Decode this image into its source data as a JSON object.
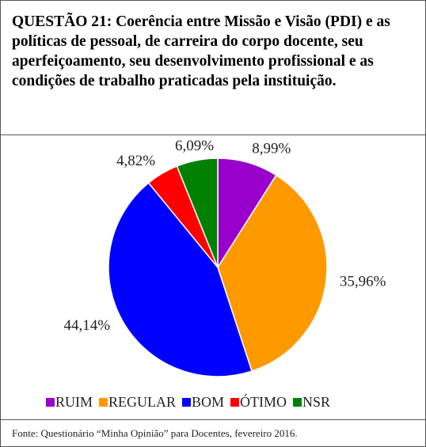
{
  "chart_data": {
    "type": "pie",
    "title": "QUESTÃO 21: Coerência entre Missão e Visão (PDI) e as políticas de pessoal, de carreira do corpo docente, seu aperfeiçoamento, seu desenvolvimento profissional e as condições de trabalho praticadas pela instituição.",
    "categories": [
      "RUIM",
      "REGULAR",
      "BOM",
      "ÓTIMO",
      "NSR"
    ],
    "values": [
      8.99,
      35.96,
      44.14,
      4.82,
      6.09
    ],
    "value_labels": [
      "8,99%",
      "35,96%",
      "44,14%",
      "4,82%",
      "6,09%"
    ],
    "colors": [
      "#9900cc",
      "#ff9900",
      "#0000ff",
      "#ff0000",
      "#008000"
    ],
    "legend": "bottom",
    "source": "Fonte: Questionário “Minha Opinião” para Docentes, fevereiro 2016."
  }
}
